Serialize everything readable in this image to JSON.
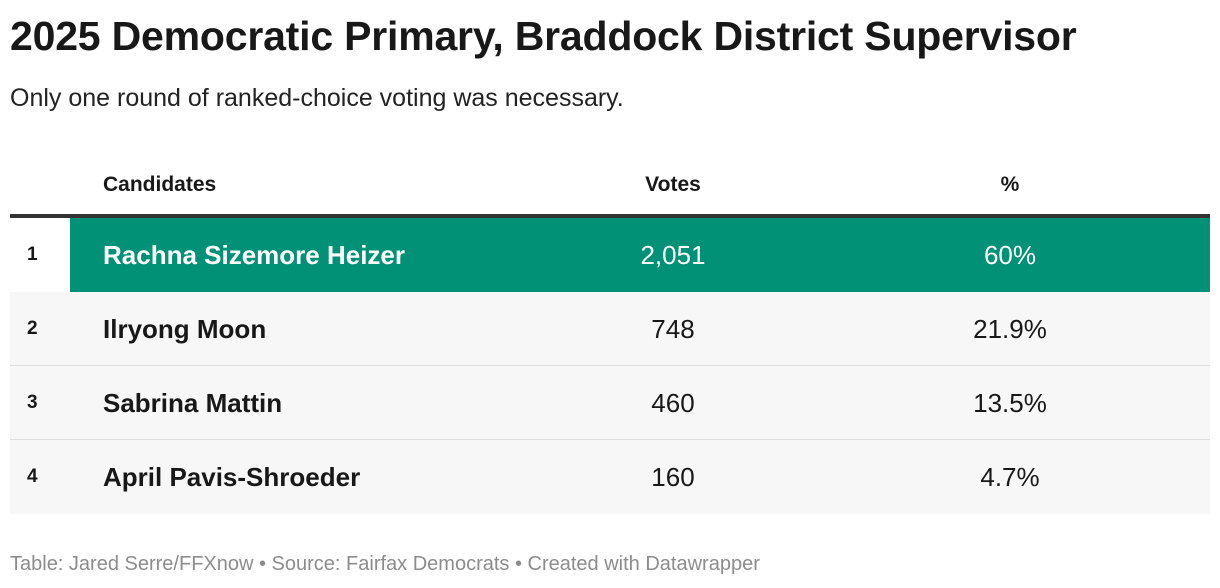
{
  "header": {
    "title": "2025 Democratic Primary, Braddock District Supervisor",
    "subtitle": "Only one round of ranked-choice voting was necessary."
  },
  "table": {
    "columns": {
      "rank": "",
      "candidate": "Candidates",
      "votes": "Votes",
      "percent": "%"
    },
    "highlight_color": "#009177",
    "rows": [
      {
        "rank": "1",
        "name": "Rachna Sizemore Heizer",
        "votes": "2,051",
        "percent": "60%",
        "winner": true
      },
      {
        "rank": "2",
        "name": "Ilryong Moon",
        "votes": "748",
        "percent": "21.9%",
        "winner": false
      },
      {
        "rank": "3",
        "name": "Sabrina Mattin",
        "votes": "460",
        "percent": "13.5%",
        "winner": false
      },
      {
        "rank": "4",
        "name": "April Pavis-Shroeder",
        "votes": "160",
        "percent": "4.7%",
        "winner": false
      }
    ]
  },
  "chart_data": {
    "type": "table",
    "title": "2025 Democratic Primary, Braddock District Supervisor",
    "subtitle": "Only one round of ranked-choice voting was necessary.",
    "columns": [
      "Candidates",
      "Votes",
      "%"
    ],
    "categories": [
      "Rachna Sizemore Heizer",
      "Ilryong Moon",
      "Sabrina Mattin",
      "April Pavis-Shroeder"
    ],
    "series": [
      {
        "name": "Votes",
        "values": [
          2051,
          748,
          460,
          160
        ]
      },
      {
        "name": "%",
        "values": [
          60,
          21.9,
          13.5,
          4.7
        ]
      }
    ]
  },
  "footer": {
    "credit": "Table: Jared Serre/FFXnow • Source: Fairfax Democrats • Created with Datawrapper"
  }
}
